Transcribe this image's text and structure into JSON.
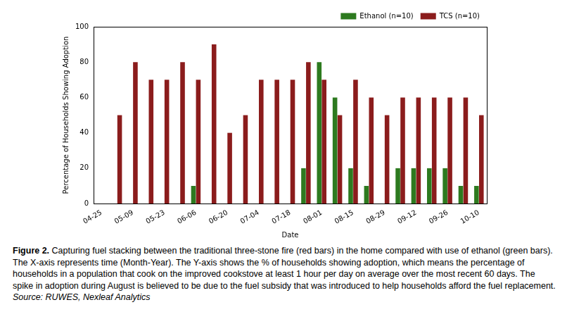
{
  "chart_data": {
    "type": "bar",
    "x_label": "Date",
    "y_label": "Percentage of Households Showing Adoption",
    "categories": [
      "04-25",
      null,
      "05-09",
      null,
      "05-23",
      null,
      "06-06",
      null,
      "06-20",
      null,
      "07-04",
      null,
      "07-18",
      null,
      "08-01",
      null,
      "08-15",
      null,
      "08-29",
      null,
      "09-12",
      null,
      "09-26",
      null,
      "10-10"
    ],
    "series": [
      {
        "name": "Ethanol (n=10)",
        "color": "#2d7a1f",
        "values": [
          0,
          0,
          0,
          0,
          0,
          0,
          10,
          0,
          0,
          0,
          0,
          0,
          0,
          20,
          80,
          60,
          20,
          10,
          0,
          20,
          20,
          20,
          20,
          10,
          10
        ]
      },
      {
        "name": "TCS (n=10)",
        "color": "#8b1c1c",
        "values": [
          0,
          50,
          80,
          70,
          70,
          80,
          70,
          90,
          40,
          50,
          70,
          70,
          70,
          80,
          70,
          50,
          70,
          60,
          50,
          60,
          60,
          60,
          60,
          60,
          50
        ]
      }
    ],
    "ylim": [
      0,
      100
    ],
    "yticks": [
      0,
      20,
      40,
      60,
      80,
      100
    ],
    "grid": false,
    "legend": "upper right",
    "caption_label": "Figure 2.",
    "caption": "Capturing fuel stacking between the traditional three-stone fire (red bars) in the home compared with use of ethanol (green bars).  The X-axis represents time (Month-Year). The Y-axis shows the % of households showing adoption, which means the percentage of households in a population that cook on the improved cookstove at least 1 hour per day on average over the most recent 60 days. The spike in adoption during August is believed to be due to the fuel subsidy that was introduced to help households afford the fuel replacement.",
    "source": "Source: RUWES, Nexleaf Analytics"
  }
}
